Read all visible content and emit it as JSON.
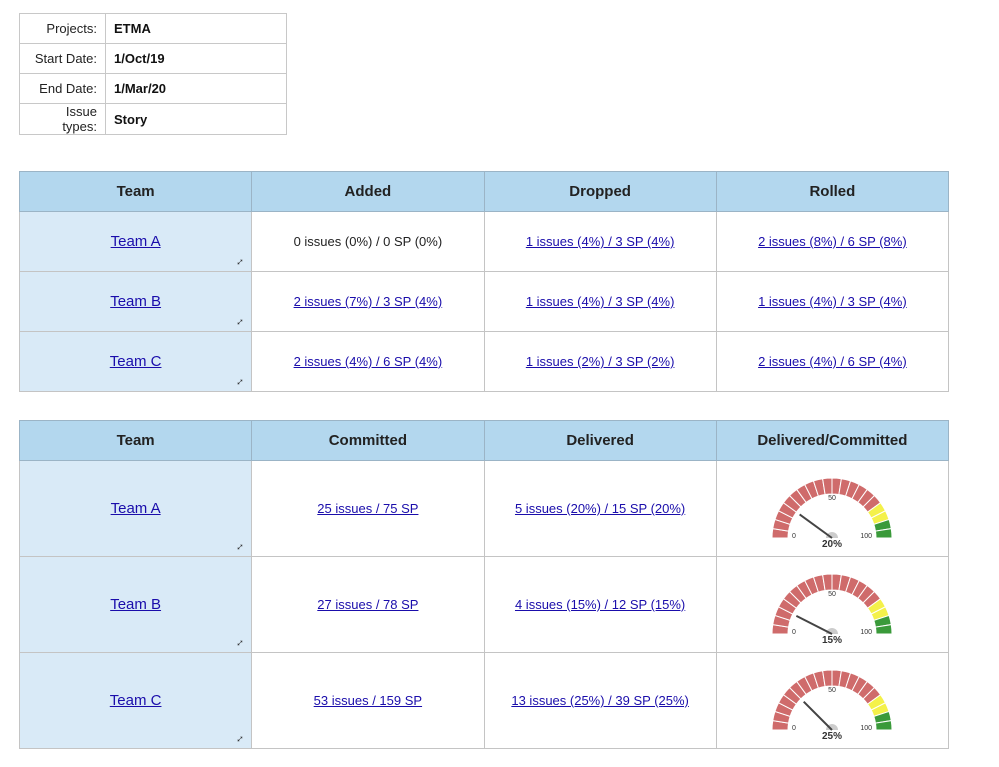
{
  "summary": [
    {
      "label": "Projects:",
      "value": "ETMA"
    },
    {
      "label": "Start Date:",
      "value": "1/Oct/19"
    },
    {
      "label": "End Date:",
      "value": "1/Mar/20"
    },
    {
      "label": "Issue types:",
      "value": "Story"
    }
  ],
  "changes": {
    "headers": [
      "Team",
      "Added",
      "Dropped",
      "Rolled"
    ],
    "rows": [
      {
        "team": "Team A",
        "added": "0 issues (0%) / 0 SP (0%)",
        "added_link": false,
        "dropped": "1 issues (4%) / 3 SP (4%)",
        "rolled": "2 issues (8%) / 6 SP (8%)"
      },
      {
        "team": "Team B",
        "added": "2 issues (7%) / 3 SP (4%)",
        "added_link": true,
        "dropped": "1 issues (4%) / 3 SP (4%)",
        "rolled": "1 issues (4%) / 3 SP (4%)"
      },
      {
        "team": "Team C",
        "added": "2 issues (4%) / 6 SP (4%)",
        "added_link": true,
        "dropped": "1 issues (2%) / 3 SP (2%)",
        "rolled": "2 issues (4%) / 6 SP (4%)"
      }
    ]
  },
  "delivery": {
    "headers": [
      "Team",
      "Committed",
      "Delivered",
      "Delivered/Committed"
    ],
    "rows": [
      {
        "team": "Team A",
        "committed": "25 issues / 75 SP ",
        "delivered": "5 issues (20%) / 15 SP (20%)",
        "gauge": {
          "value": 20,
          "label": "20%"
        }
      },
      {
        "team": "Team B",
        "committed": "27 issues / 78 SP ",
        "delivered": "4 issues (15%) / 12 SP (15%)",
        "gauge": {
          "value": 15,
          "label": "15%"
        }
      },
      {
        "team": "Team C",
        "committed": "53 issues / 159 SP ",
        "delivered": "13 issues (25%) / 39 SP (25%)",
        "gauge": {
          "value": 25,
          "label": "25%"
        }
      }
    ]
  },
  "gauge_scale": {
    "min_label": "0",
    "mid_label": "50",
    "max_label": "100"
  },
  "colors": {
    "red": "#cf6b6b",
    "yellow": "#f4f14a",
    "green": "#3a9a3a",
    "header": "#b3d7ee",
    "team_cell": "#d9eaf7",
    "link": "#1a0dab"
  },
  "icons": {
    "expand": "expand-arrows-icon"
  }
}
